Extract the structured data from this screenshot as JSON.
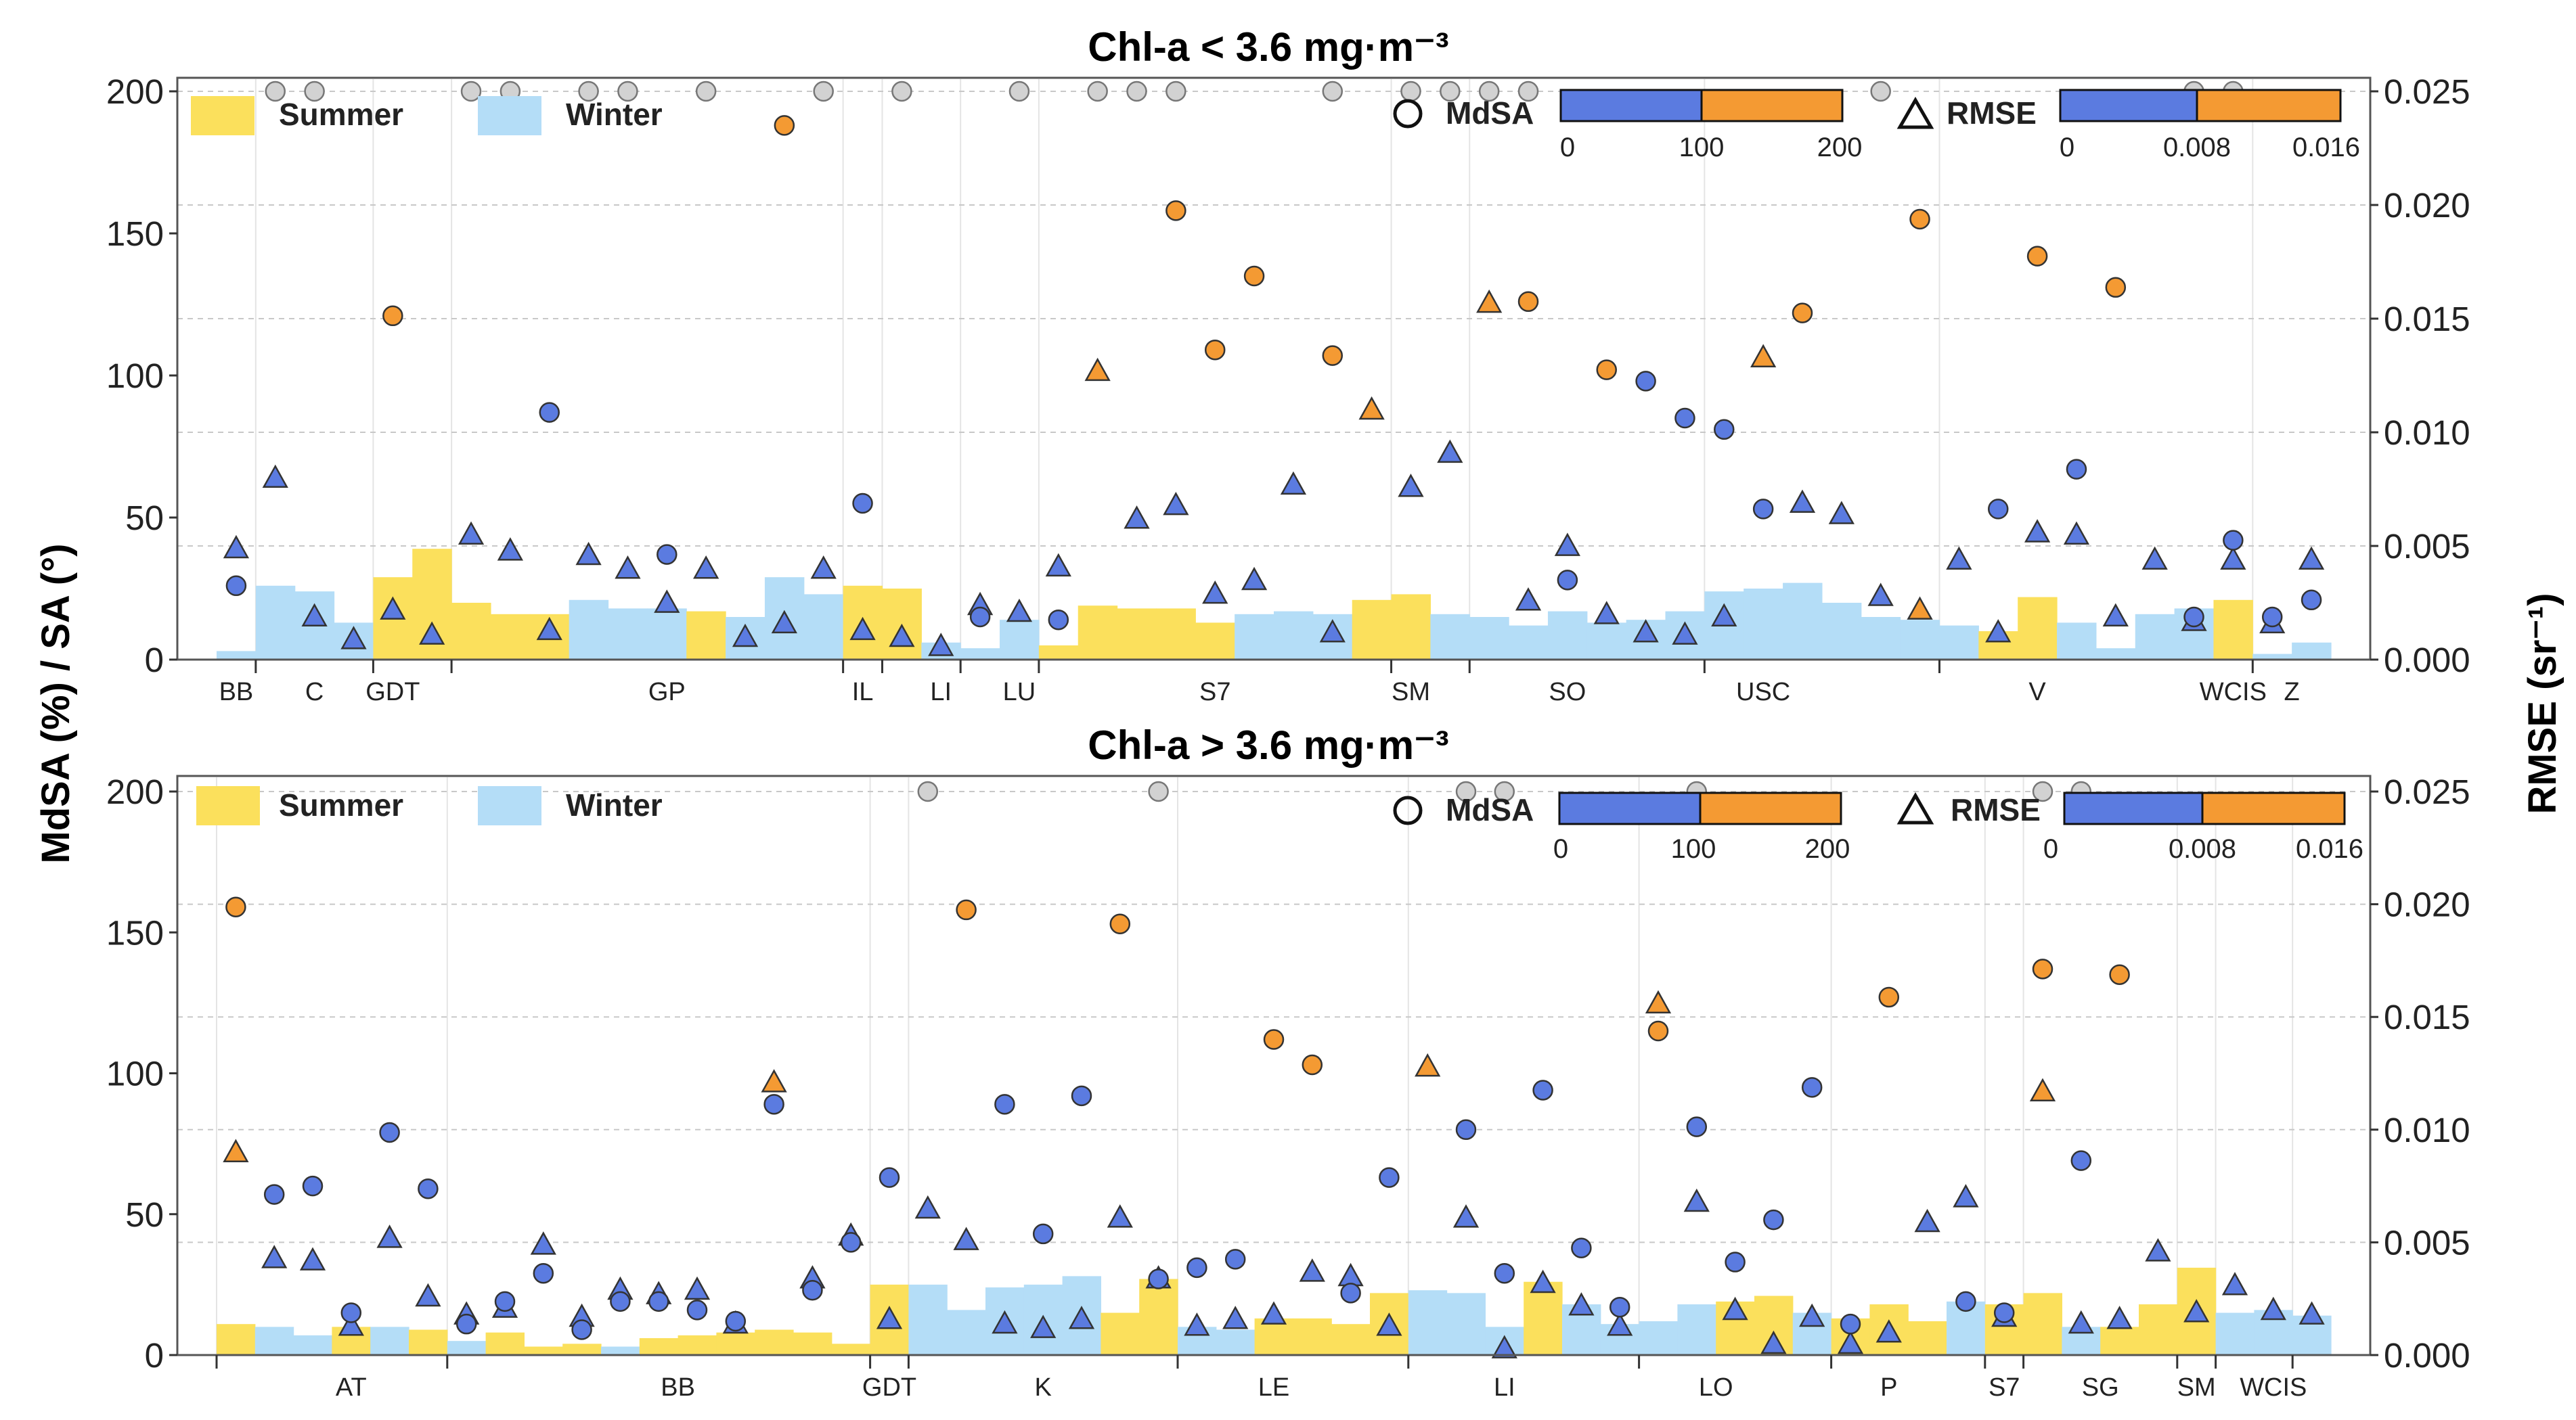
{
  "colors": {
    "summer": "#fbe05c",
    "winter": "#b4ddf7",
    "low": "#5b7be0",
    "high": "#f49a33",
    "capped": "#d2d2d2"
  },
  "y_axis_label_left": "MdSA (%) / SA (°)",
  "y_axis_label_right": "RMSE (sr⁻¹)",
  "legend": {
    "summer": "Summer",
    "winter": "Winter",
    "mdsa": "MdSA",
    "rmse": "RMSE",
    "mdsa_ticks": [
      "0",
      "100",
      "200"
    ],
    "rmse_ticks": [
      "0",
      "0.008",
      "0.016"
    ]
  },
  "chart_data": [
    {
      "type": "bar",
      "title": "Chl-a < 3.6 mg·m⁻³",
      "ylim": [
        0,
        200
      ],
      "ylim_right": [
        0,
        0.025
      ],
      "yticks": [
        "0",
        "50",
        "100",
        "150",
        "200"
      ],
      "yticks_right": [
        "0.000",
        "0.005",
        "0.010",
        "0.015",
        "0.020",
        "0.025"
      ],
      "n": 54,
      "categories": [
        {
          "label": "BB",
          "i": 0
        },
        {
          "label": "C",
          "i": 2
        },
        {
          "label": "GDT",
          "i": 4
        },
        {
          "label": "GP",
          "i": 11
        },
        {
          "label": "IL",
          "i": 16
        },
        {
          "label": "LI",
          "i": 18
        },
        {
          "label": "LU",
          "i": 20
        },
        {
          "label": "S7",
          "i": 25
        },
        {
          "label": "SM",
          "i": 30
        },
        {
          "label": "SO",
          "i": 34
        },
        {
          "label": "USC",
          "i": 39
        },
        {
          "label": "V",
          "i": 46
        },
        {
          "label": "WCIS",
          "i": 51
        },
        {
          "label": "Z",
          "i": 52.5
        }
      ],
      "dividers": [
        1,
        4,
        6,
        16,
        17,
        19,
        21,
        30,
        32,
        38,
        44,
        52
      ],
      "season": [
        "W",
        "W",
        "W",
        "W",
        "S",
        "S",
        "S",
        "S",
        "S",
        "W",
        "W",
        "W",
        "S",
        "W",
        "W",
        "W",
        "S",
        "S",
        "W",
        "W",
        "W",
        "S",
        "S",
        "S",
        "S",
        "S",
        "W",
        "W",
        "W",
        "S",
        "S",
        "W",
        "W",
        "W",
        "W",
        "W",
        "W",
        "W",
        "W",
        "W",
        "W",
        "W",
        "W",
        "W",
        "W",
        "S",
        "S",
        "W",
        "W",
        "W",
        "W",
        "S",
        "W",
        "W"
      ],
      "sa": [
        3,
        26,
        24,
        13,
        29,
        39,
        20,
        16,
        16,
        21,
        18,
        18,
        17,
        15,
        29,
        23,
        26,
        25,
        6,
        4,
        14,
        5,
        19,
        18,
        18,
        13,
        16,
        17,
        16,
        21,
        23,
        16,
        15,
        12,
        17,
        13,
        14,
        17,
        24,
        25,
        27,
        20,
        15,
        14,
        12,
        10,
        22,
        13,
        4,
        16,
        18,
        21,
        2,
        6
      ],
      "mdsa": [
        26,
        null,
        null,
        null,
        121,
        null,
        null,
        null,
        87,
        null,
        null,
        37,
        null,
        null,
        188,
        null,
        55,
        null,
        null,
        15,
        null,
        14,
        null,
        null,
        158,
        109,
        135,
        null,
        107,
        null,
        null,
        null,
        null,
        126,
        28,
        102,
        98,
        85,
        81,
        53,
        122,
        null,
        null,
        155,
        null,
        53,
        142,
        67,
        131,
        null,
        15,
        42,
        15,
        21
      ],
      "mdsa_capped": [
        {
          "i": 1,
          "v": 200
        },
        {
          "i": 2,
          "v": 200
        },
        {
          "i": 6,
          "v": 200
        },
        {
          "i": 7,
          "v": 200
        },
        {
          "i": 9,
          "v": 200
        },
        {
          "i": 10,
          "v": 200
        },
        {
          "i": 12,
          "v": 200
        },
        {
          "i": 15,
          "v": 200
        },
        {
          "i": 17,
          "v": 200
        },
        {
          "i": 20,
          "v": 200
        },
        {
          "i": 22,
          "v": 200
        },
        {
          "i": 23,
          "v": 200
        },
        {
          "i": 24,
          "v": 200
        },
        {
          "i": 28,
          "v": 200
        },
        {
          "i": 30,
          "v": 200
        },
        {
          "i": 31,
          "v": 200
        },
        {
          "i": 32,
          "v": 200
        },
        {
          "i": 33,
          "v": 200
        },
        {
          "i": 42,
          "v": 200
        },
        {
          "i": 50,
          "v": 200
        },
        {
          "i": 51,
          "v": 200
        }
      ],
      "rmse": [
        0.0049,
        0.008,
        0.0019,
        0.0009,
        0.0022,
        0.0011,
        0.0055,
        0.0048,
        0.0013,
        0.0046,
        0.004,
        0.0025,
        0.004,
        0.001,
        0.0016,
        0.004,
        0.0013,
        0.001,
        0.0006,
        0.0024,
        0.0021,
        0.0041,
        0.0127,
        0.0062,
        0.0068,
        0.0029,
        0.0035,
        0.0077,
        0.0012,
        0.011,
        0.0076,
        0.0091,
        0.0157,
        0.0026,
        0.005,
        0.002,
        0.0012,
        0.0011,
        0.0019,
        0.0133,
        0.0069,
        0.0064,
        0.0028,
        0.0022,
        0.0044,
        0.0012,
        0.0056,
        0.0055,
        0.0019,
        0.0044,
        0.0017,
        0.0044,
        0.0016,
        0.0044
      ],
      "rmse_high": [
        22,
        29,
        32,
        39,
        43
      ]
    },
    {
      "type": "bar",
      "title": "Chl-a > 3.6 mg·m⁻³",
      "ylim": [
        0,
        200
      ],
      "ylim_right": [
        0,
        0.025
      ],
      "yticks": [
        "0",
        "50",
        "100",
        "150",
        "200"
      ],
      "yticks_right": [
        "0.000",
        "0.005",
        "0.010",
        "0.015",
        "0.020",
        "0.025"
      ],
      "n": 55,
      "categories": [
        {
          "label": "AT",
          "i": 3
        },
        {
          "label": "BB",
          "i": 11.5
        },
        {
          "label": "GDT",
          "i": 17
        },
        {
          "label": "K",
          "i": 21
        },
        {
          "label": "LE",
          "i": 27
        },
        {
          "label": "LI",
          "i": 33
        },
        {
          "label": "LO",
          "i": 38.5
        },
        {
          "label": "P",
          "i": 43
        },
        {
          "label": "S7",
          "i": 46
        },
        {
          "label": "SG",
          "i": 48.5
        },
        {
          "label": "SM",
          "i": 51
        },
        {
          "label": "WCIS",
          "i": 53
        }
      ],
      "dividers": [
        0,
        6,
        17,
        18,
        25,
        31,
        37,
        42,
        46,
        47,
        51,
        52,
        54
      ],
      "season": [
        "S",
        "W",
        "W",
        "S",
        "W",
        "S",
        "W",
        "S",
        "S",
        "S",
        "W",
        "S",
        "S",
        "S",
        "S",
        "S",
        "S",
        "S",
        "W",
        "W",
        "W",
        "W",
        "W",
        "S",
        "S",
        "W",
        "W",
        "S",
        "S",
        "S",
        "S",
        "W",
        "W",
        "W",
        "S",
        "W",
        "W",
        "W",
        "W",
        "S",
        "S",
        "W",
        "S",
        "S",
        "S",
        "W",
        "S",
        "S",
        "W",
        "S",
        "S",
        "S",
        "W",
        "W",
        "W"
      ],
      "sa": [
        11,
        10,
        7,
        10,
        10,
        9,
        5,
        8,
        3,
        4,
        3,
        6,
        7,
        8,
        9,
        8,
        4,
        25,
        25,
        16,
        24,
        25,
        28,
        15,
        27,
        10,
        9,
        13,
        13,
        11,
        22,
        23,
        22,
        10,
        26,
        18,
        11,
        12,
        18,
        19,
        21,
        15,
        13,
        18,
        12,
        19,
        18,
        22,
        10,
        10,
        18,
        31,
        15,
        16,
        14
      ],
      "mdsa": [
        159,
        57,
        60,
        15,
        79,
        59,
        11,
        19,
        29,
        9,
        19,
        19,
        16,
        12,
        89,
        23,
        40,
        63,
        null,
        158,
        89,
        43,
        92,
        153,
        27,
        31,
        34,
        112,
        103,
        22,
        63,
        null,
        80,
        29,
        94,
        38,
        17,
        115,
        81,
        33,
        48,
        95,
        11,
        127,
        null,
        19,
        15,
        137,
        69,
        135,
        null,
        null,
        null,
        null,
        null
      ],
      "mdsa_capped": [
        {
          "i": 18,
          "v": 200
        },
        {
          "i": 24,
          "v": 200
        },
        {
          "i": 32,
          "v": 200
        },
        {
          "i": 33,
          "v": 200
        },
        {
          "i": 38,
          "v": 200
        },
        {
          "i": 47,
          "v": 200
        },
        {
          "i": 48,
          "v": 200
        }
      ],
      "rmse": [
        0.009,
        0.0043,
        0.0042,
        0.0013,
        0.0052,
        0.0026,
        0.0018,
        0.0021,
        0.0049,
        0.0017,
        0.0029,
        0.0027,
        0.0029,
        0.0014,
        0.0121,
        0.0034,
        0.0053,
        0.0016,
        0.0065,
        0.0051,
        0.0014,
        0.0012,
        0.0016,
        0.0061,
        0.0034,
        0.0013,
        0.0016,
        0.0018,
        0.0037,
        0.0035,
        0.0013,
        0.0128,
        0.0061,
        0.0003,
        0.0032,
        0.0022,
        0.0013,
        0.0156,
        0.0068,
        0.002,
        0.0005,
        0.0017,
        0.0005,
        0.001,
        0.0059,
        0.007,
        0.0017,
        0.0117,
        0.0014,
        0.0016,
        0.0046,
        0.0019,
        0.0031,
        0.002,
        0.0018
      ],
      "rmse_high": [
        0,
        14,
        31,
        37,
        47
      ]
    }
  ]
}
